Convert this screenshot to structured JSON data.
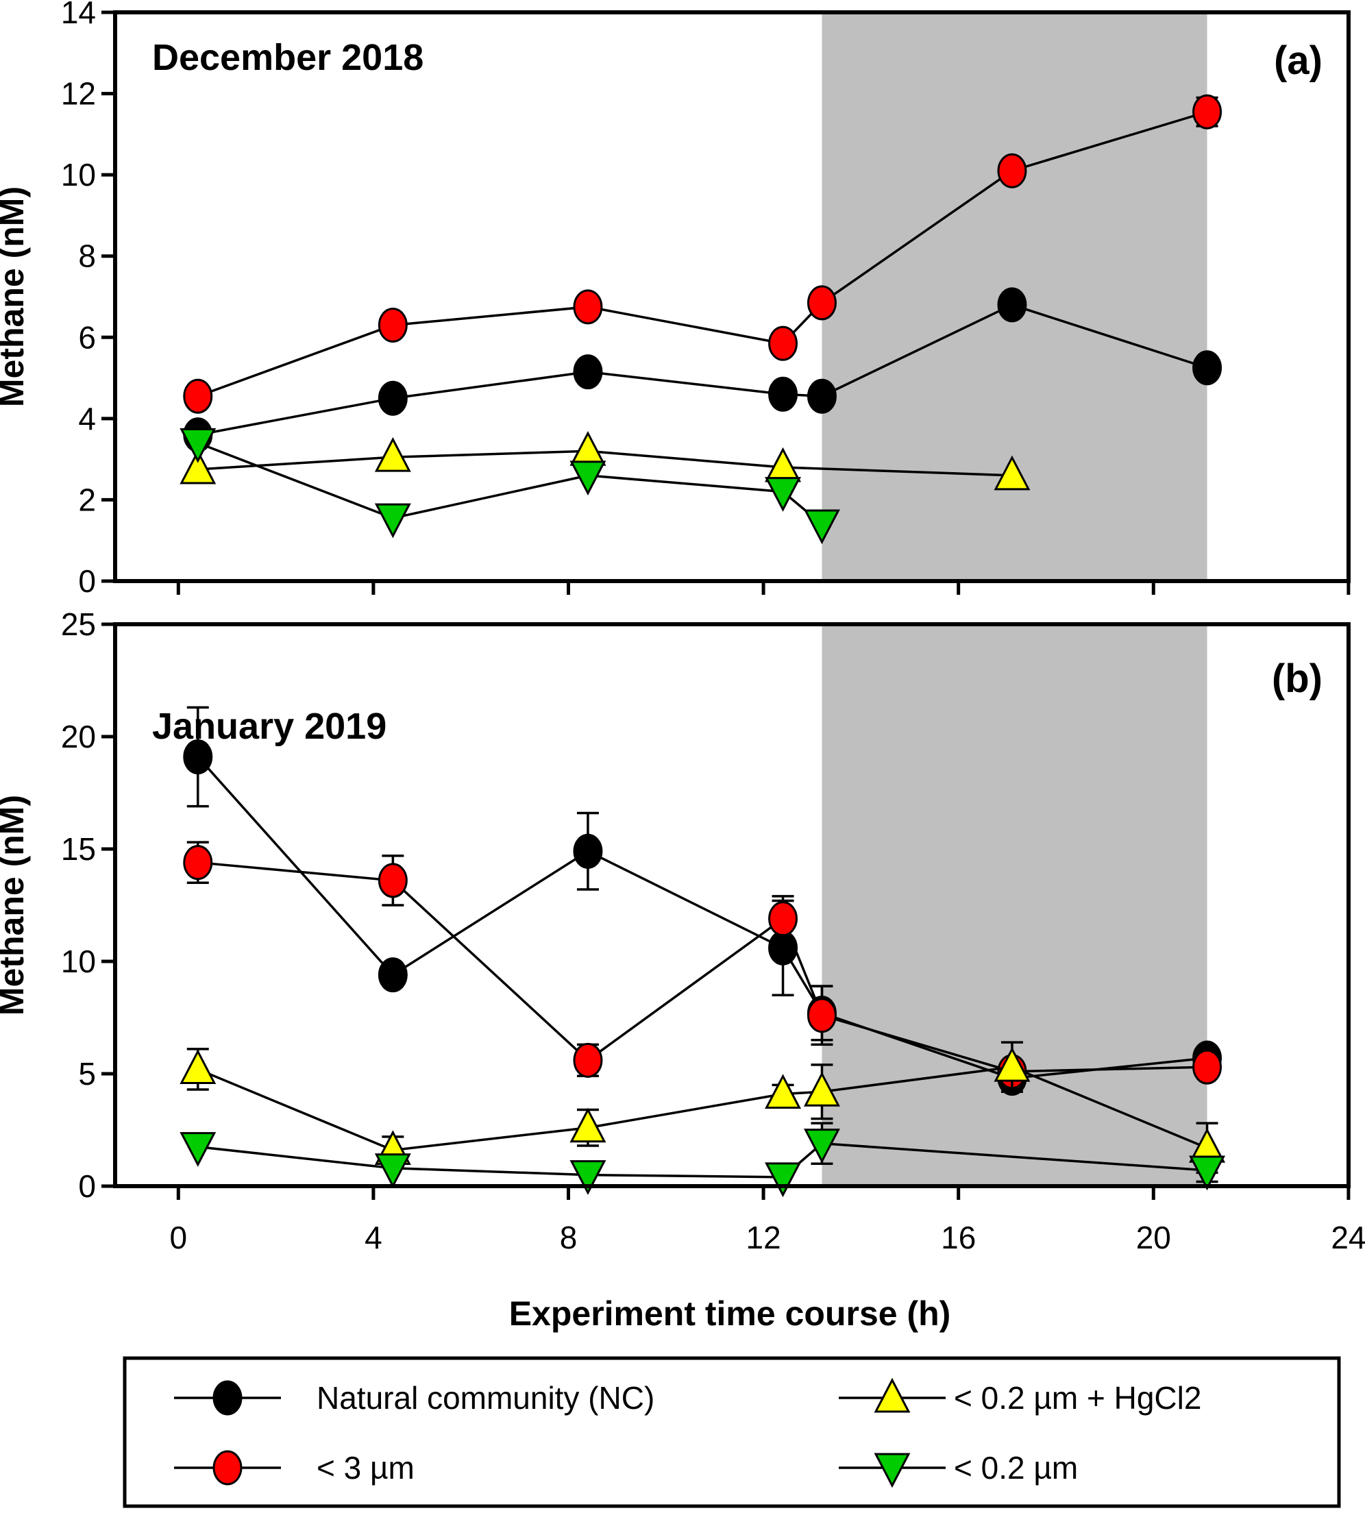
{
  "figure": {
    "y_axis_title": "Methane (nM)",
    "x_axis_title": "Experiment time course (h)"
  },
  "colors": {
    "natural_community": "#000000",
    "lt_3um": "#FF0000",
    "lt_02um_hgcl2": "#FFFF00",
    "lt_02um": "#00CC00",
    "shaded_band": "#BFBFBF",
    "axis": "#000000",
    "background": "#FFFFFF"
  },
  "legend": {
    "items": [
      {
        "label": "Natural community (NC)",
        "marker": "circle",
        "color": "#000000"
      },
      {
        "label": "< 3 µm",
        "marker": "circle",
        "color": "#FF0000"
      },
      {
        "label": "< 0.2 µm + HgCl2",
        "marker": "triangle-up",
        "color": "#FFFF00"
      },
      {
        "label": "< 0.2 µm",
        "marker": "triangle-down",
        "color": "#00CC00"
      }
    ]
  },
  "chart_data": [
    {
      "type": "line",
      "title": "December 2018",
      "panel_label": "(a)",
      "ylabel": "Methane (nM)",
      "xlabel": "Experiment time course (h)",
      "xlim": [
        -1.3,
        24
      ],
      "ylim": [
        0,
        14
      ],
      "x_ticks": [
        0,
        4,
        8,
        12,
        16,
        20,
        24
      ],
      "y_ticks": [
        0,
        2,
        4,
        6,
        8,
        10,
        12,
        14
      ],
      "show_x_tick_labels": false,
      "grid": false,
      "shaded_region": {
        "x_start": 13.2,
        "x_end": 21.1,
        "color": "#BFBFBF"
      },
      "series": [
        {
          "name": "Natural community (NC)",
          "marker": "circle",
          "color": "#000000",
          "x": [
            0.4,
            4.4,
            8.4,
            12.4,
            13.2,
            17.1,
            21.1
          ],
          "y": [
            3.6,
            4.5,
            5.15,
            4.6,
            4.55,
            6.8,
            5.25
          ],
          "yerr": [
            0,
            0,
            0,
            0,
            0,
            0,
            0
          ]
        },
        {
          "name": "< 3 µm",
          "marker": "circle",
          "color": "#FF0000",
          "x": [
            0.4,
            4.4,
            8.4,
            12.4,
            13.2,
            17.1,
            21.1
          ],
          "y": [
            4.55,
            6.3,
            6.75,
            5.85,
            6.85,
            10.1,
            11.55
          ],
          "yerr": [
            0,
            0,
            0,
            0,
            0,
            0,
            0.35
          ]
        },
        {
          "name": "< 0.2 µm + HgCl2",
          "marker": "triangle-up",
          "color": "#FFFF00",
          "x": [
            0.4,
            4.4,
            8.4,
            12.4,
            17.1
          ],
          "y": [
            2.75,
            3.05,
            3.2,
            2.8,
            2.6
          ],
          "yerr": [
            0,
            0,
            0,
            0,
            0
          ]
        },
        {
          "name": "< 0.2 µm",
          "marker": "triangle-down",
          "color": "#00CC00",
          "x": [
            0.4,
            4.4,
            8.4,
            12.4,
            13.2
          ],
          "y": [
            3.4,
            1.55,
            2.6,
            2.2,
            1.4
          ],
          "yerr": [
            0,
            0,
            0,
            0,
            0
          ]
        }
      ]
    },
    {
      "type": "line",
      "title": "January 2019",
      "panel_label": "(b)",
      "ylabel": "Methane (nM)",
      "xlabel": "Experiment time course (h)",
      "xlim": [
        -1.3,
        24
      ],
      "ylim": [
        0,
        25
      ],
      "x_ticks": [
        0,
        4,
        8,
        12,
        16,
        20,
        24
      ],
      "y_ticks": [
        0,
        5,
        10,
        15,
        20,
        25
      ],
      "show_x_tick_labels": true,
      "grid": false,
      "shaded_region": {
        "x_start": 13.2,
        "x_end": 21.1,
        "color": "#BFBFBF"
      },
      "series": [
        {
          "name": "Natural community (NC)",
          "marker": "circle",
          "color": "#000000",
          "x": [
            0.4,
            4.4,
            8.4,
            12.4,
            13.2,
            17.1,
            21.1
          ],
          "y": [
            19.1,
            9.4,
            14.9,
            10.6,
            7.7,
            4.8,
            5.7
          ],
          "yerr": [
            2.2,
            0,
            1.7,
            2.1,
            1.2,
            0,
            0
          ]
        },
        {
          "name": "< 3 µm",
          "marker": "circle",
          "color": "#FF0000",
          "x": [
            0.4,
            4.4,
            8.4,
            12.4,
            13.2,
            17.1,
            21.1
          ],
          "y": [
            14.4,
            13.6,
            5.6,
            11.9,
            7.6,
            5.1,
            5.3
          ],
          "yerr": [
            0.9,
            1.1,
            0.7,
            1.0,
            1.3,
            0,
            0
          ]
        },
        {
          "name": "< 0.2 µm + HgCl2",
          "marker": "triangle-up",
          "color": "#FFFF00",
          "x": [
            0.4,
            4.4,
            8.4,
            12.4,
            13.2,
            17.1,
            21.1
          ],
          "y": [
            5.2,
            1.6,
            2.6,
            4.1,
            4.2,
            5.3,
            1.7
          ],
          "yerr": [
            0.9,
            0.6,
            0.8,
            0.4,
            1.2,
            1.1,
            1.1
          ]
        },
        {
          "name": "< 0.2 µm",
          "marker": "triangle-down",
          "color": "#00CC00",
          "x": [
            0.4,
            4.4,
            8.4,
            12.4,
            13.2,
            21.1
          ],
          "y": [
            1.75,
            0.8,
            0.5,
            0.4,
            1.9,
            0.7
          ],
          "yerr": [
            0,
            0,
            0,
            0,
            0.9,
            0.5
          ]
        }
      ]
    }
  ]
}
